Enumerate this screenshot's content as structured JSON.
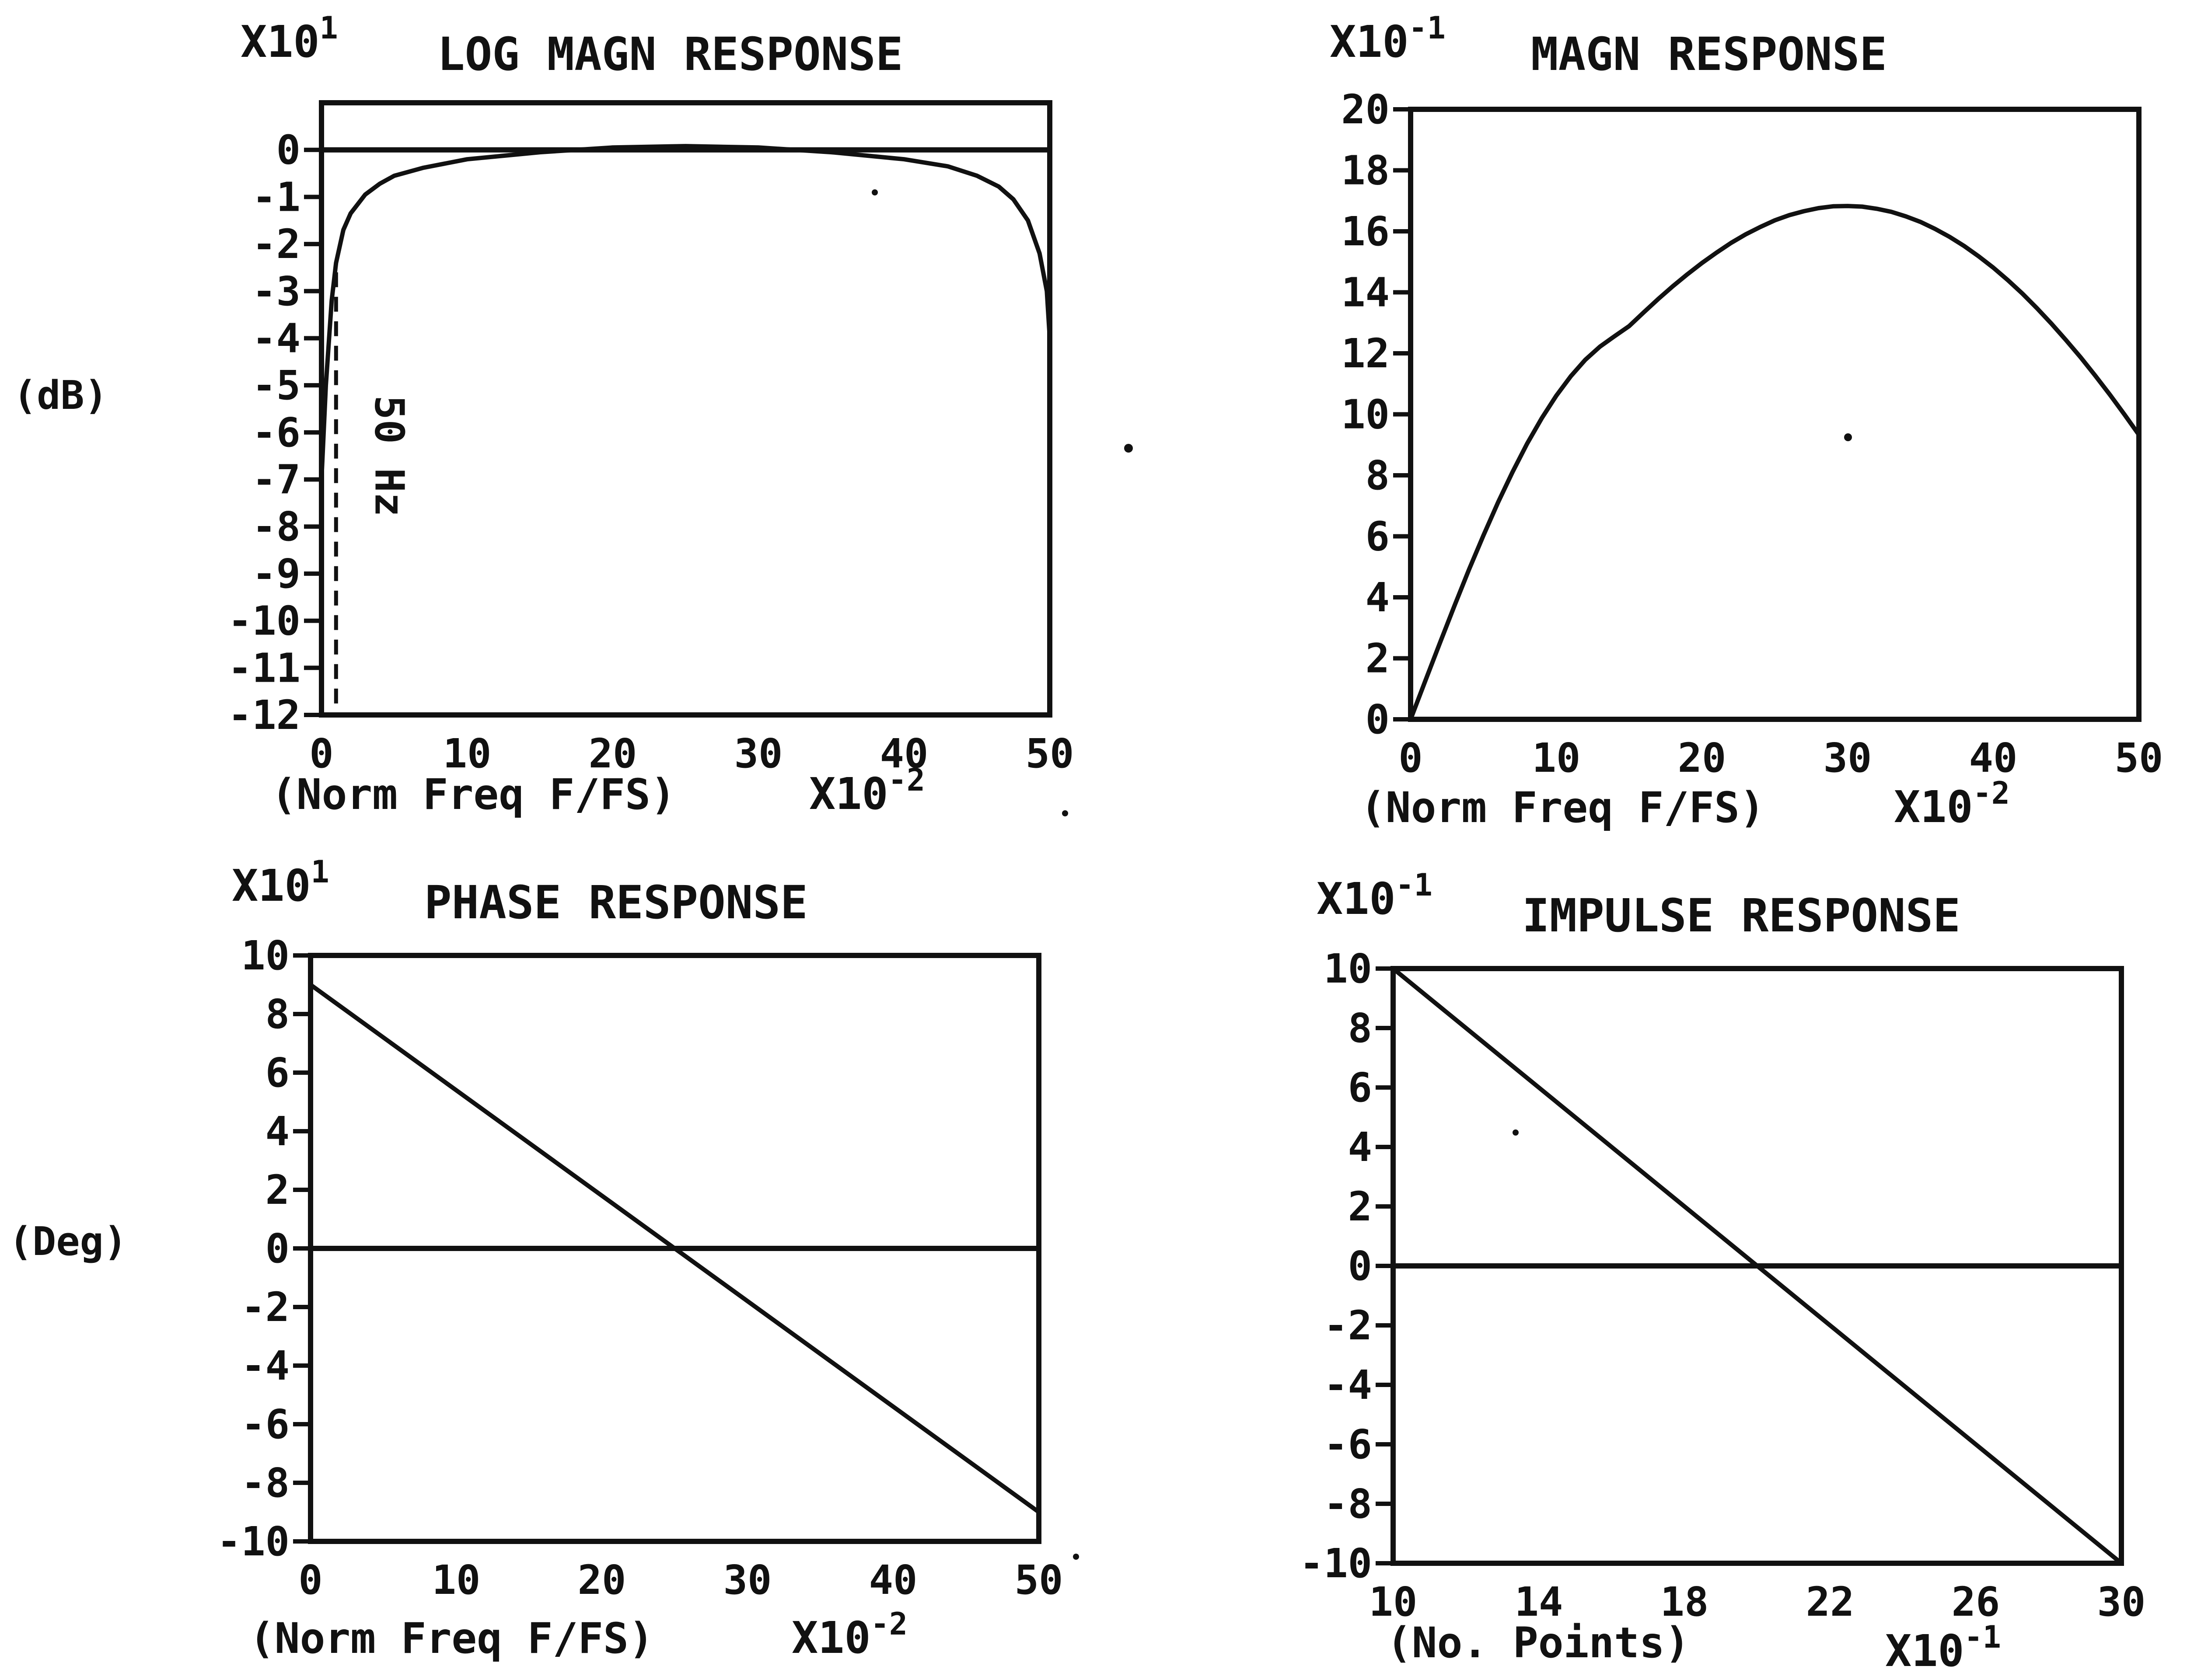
{
  "chart_data": [
    {
      "id": "log-mag",
      "type": "line",
      "title": "LOG MAGN RESPONSE",
      "y_multiplier": "X10^1",
      "ylabel": "(dB)",
      "xlabel": "(Norm Freq F/FS)",
      "x_multiplier": "X10^-2",
      "xlim": [
        0,
        50
      ],
      "ylim": [
        -12,
        1
      ],
      "x_ticks": [
        "0",
        "10",
        "20",
        "30",
        "40",
        "50"
      ],
      "y_ticks": [
        "0",
        "-1",
        "-2",
        "-3",
        "-4",
        "-5",
        "-6",
        "-7",
        "-8",
        "-9",
        "-10",
        "-11",
        "-12"
      ],
      "zero_line": 0,
      "annotation": "50 Hz",
      "annotation_x": 1,
      "series": [
        {
          "x": [
            0,
            0.3,
            0.7,
            1.0,
            1.5,
            2,
            3,
            4,
            5,
            7,
            10,
            15,
            20,
            25,
            30,
            35,
            40,
            43,
            45,
            46.5,
            47.5,
            48.5,
            49.3,
            49.8,
            50
          ],
          "y": [
            -7.0,
            -5.0,
            -3.2,
            -2.4,
            -1.7,
            -1.35,
            -0.95,
            -0.72,
            -0.55,
            -0.38,
            -0.2,
            -0.05,
            0.05,
            0.08,
            0.05,
            -0.05,
            -0.2,
            -0.35,
            -0.55,
            -0.78,
            -1.05,
            -1.5,
            -2.2,
            -3.0,
            -4.0
          ]
        }
      ]
    },
    {
      "id": "magn",
      "type": "line",
      "title": "MAGN RESPONSE",
      "y_multiplier": "X10^-1",
      "xlabel": "(Norm Freq F/FS)",
      "x_multiplier": "X10^-2",
      "xlim": [
        0,
        50
      ],
      "ylim": [
        0,
        20
      ],
      "x_ticks": [
        "0",
        "10",
        "20",
        "30",
        "40",
        "50"
      ],
      "y_ticks": [
        "0",
        "2",
        "4",
        "6",
        "8",
        "10",
        "12",
        "14",
        "16",
        "18",
        "20"
      ],
      "series": [
        {
          "x": [
            0,
            1,
            2,
            3,
            4,
            5,
            6,
            7,
            8,
            9,
            10,
            11,
            12,
            13,
            14,
            15,
            16,
            17,
            18,
            19,
            20,
            21,
            22,
            23,
            24,
            25,
            26,
            27,
            28,
            29,
            30,
            31,
            32,
            33,
            34,
            35,
            36,
            37,
            38,
            39,
            40,
            41,
            42,
            43,
            44,
            45,
            46,
            47,
            48,
            49,
            50
          ],
          "y": [
            0,
            1.25,
            2.49,
            3.71,
            4.9,
            6.03,
            7.11,
            8.11,
            9.04,
            9.87,
            10.61,
            11.25,
            11.79,
            12.22,
            12.56,
            12.89,
            13.34,
            13.78,
            14.2,
            14.59,
            14.96,
            15.3,
            15.62,
            15.9,
            16.14,
            16.36,
            16.53,
            16.66,
            16.76,
            16.82,
            16.83,
            16.81,
            16.74,
            16.64,
            16.49,
            16.31,
            16.08,
            15.82,
            15.52,
            15.18,
            14.81,
            14.4,
            13.96,
            13.48,
            12.97,
            12.43,
            11.87,
            11.27,
            10.65,
            10.0,
            9.33
          ]
        }
      ]
    },
    {
      "id": "phase",
      "type": "line",
      "title": "PHASE RESPONSE",
      "y_multiplier": "X10^1",
      "ylabel": "(Deg)",
      "xlabel": "(Norm Freq F/FS)",
      "x_multiplier": "X10^-2",
      "xlim": [
        0,
        50
      ],
      "ylim": [
        -10,
        10
      ],
      "x_ticks": [
        "0",
        "10",
        "20",
        "30",
        "40",
        "50"
      ],
      "y_ticks": [
        "-10",
        "-8",
        "-6",
        "-4",
        "-2",
        "0",
        "2",
        "4",
        "6",
        "8",
        "10"
      ],
      "zero_line": 0,
      "series": [
        {
          "x": [
            0,
            50
          ],
          "y": [
            9,
            -9
          ]
        }
      ]
    },
    {
      "id": "impulse",
      "type": "line",
      "title": "IMPULSE RESPONSE",
      "y_multiplier": "X10^-1",
      "xlabel": "(No. Points)",
      "x_multiplier": "X10^-1",
      "xlim": [
        10,
        30
      ],
      "ylim": [
        -10,
        10
      ],
      "x_ticks": [
        "10",
        "14",
        "18",
        "22",
        "26",
        "30"
      ],
      "y_ticks": [
        "-10",
        "-8",
        "-6",
        "-4",
        "-2",
        "0",
        "2",
        "4",
        "6",
        "8",
        "10"
      ],
      "zero_line": 0,
      "series": [
        {
          "x": [
            10,
            30
          ],
          "y": [
            10,
            -10
          ]
        }
      ]
    }
  ]
}
